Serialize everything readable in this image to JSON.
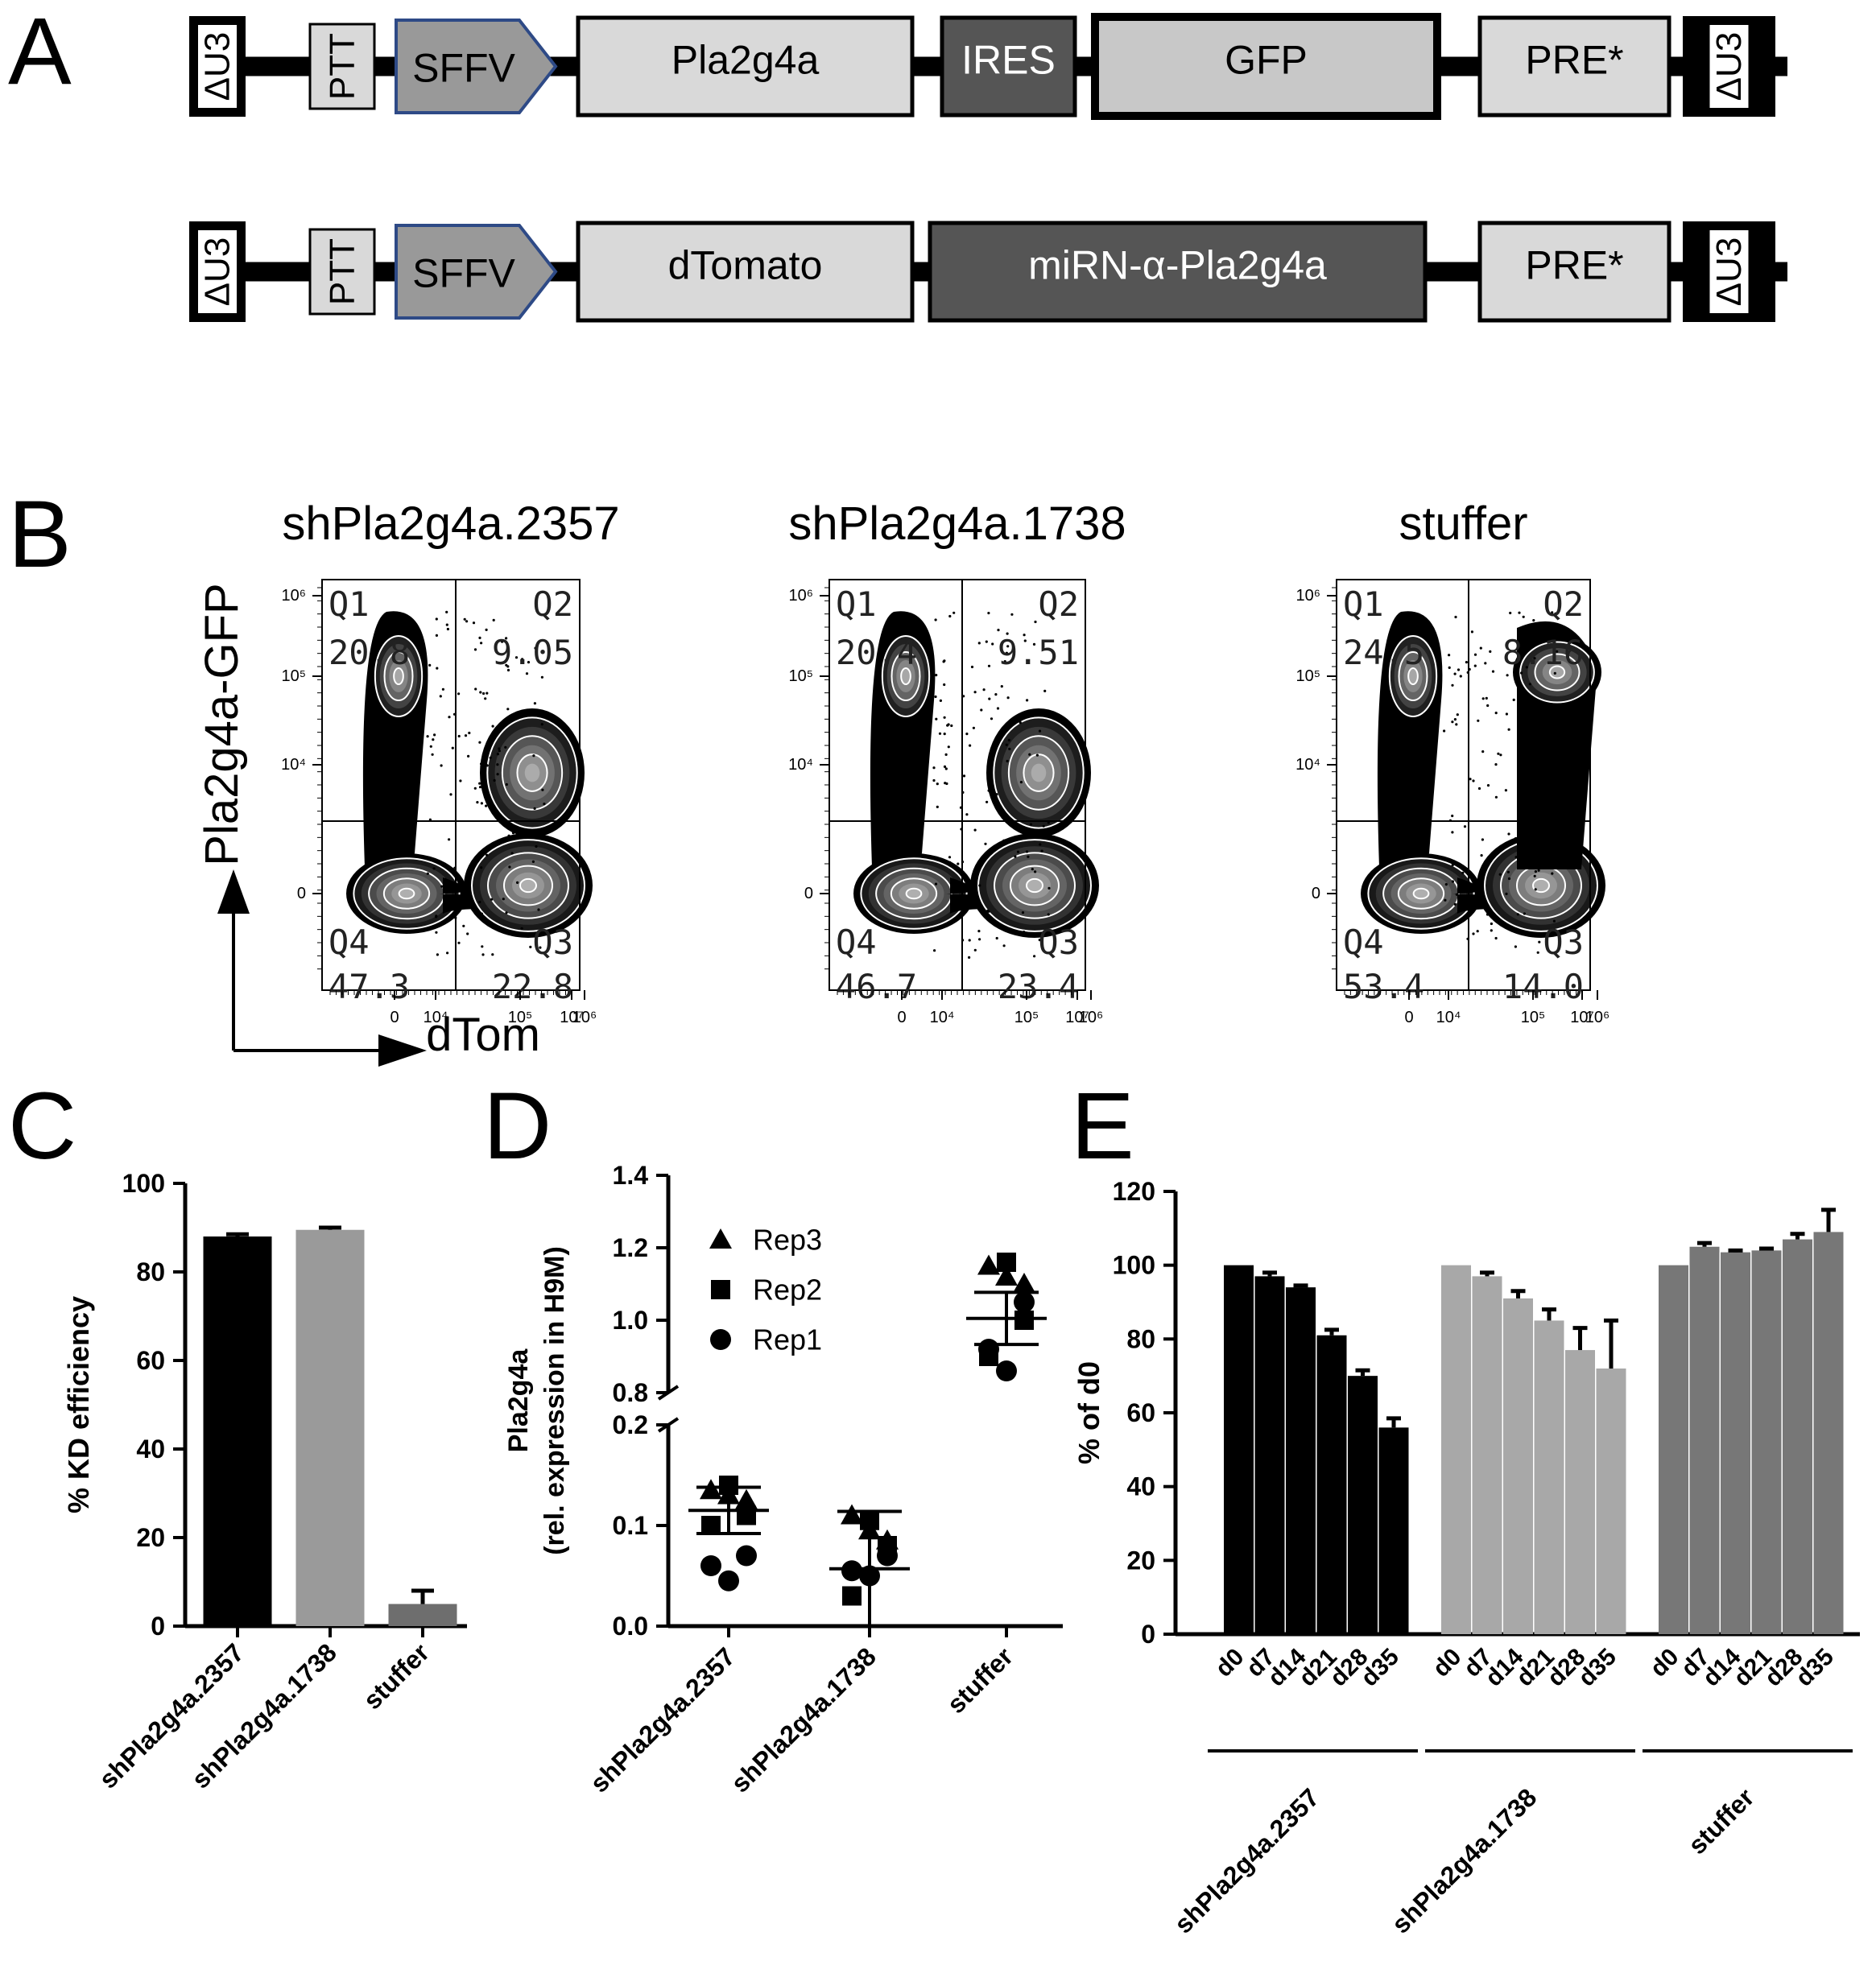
{
  "panels": {
    "A": {
      "letter": "A",
      "constructs": [
        {
          "elements": [
            {
              "kind": "ltr",
              "label": "ΔU3"
            },
            {
              "kind": "small",
              "label": "PTT"
            },
            {
              "kind": "promoter",
              "label": "SFFV"
            },
            {
              "kind": "box",
              "label": "Pla2g4a"
            },
            {
              "kind": "dark",
              "label": "IRES"
            },
            {
              "kind": "thick",
              "label": "GFP"
            },
            {
              "kind": "box",
              "label": "PRE*"
            },
            {
              "kind": "ltr",
              "label": "ΔU3"
            }
          ]
        },
        {
          "elements": [
            {
              "kind": "ltr",
              "label": "ΔU3"
            },
            {
              "kind": "small",
              "label": "PTT"
            },
            {
              "kind": "promoter",
              "label": "SFFV"
            },
            {
              "kind": "box",
              "label": "dTomato"
            },
            {
              "kind": "dark",
              "label": "miRN-α-Pla2g4a"
            },
            {
              "kind": "box",
              "label": "PRE*"
            },
            {
              "kind": "ltr",
              "label": "ΔU3"
            }
          ]
        }
      ]
    },
    "B": {
      "letter": "B",
      "y_axis_label": "Pla2g4a-GFP",
      "x_axis_label": "dTom",
      "y_ticks": [
        "10⁶",
        "10⁵",
        "10⁴",
        "0"
      ],
      "x_ticks": [
        "0",
        "10⁴",
        "10⁵",
        "10⁶",
        "10⁷"
      ],
      "plots": [
        {
          "title": "shPla2g4a.2357",
          "q1_label": "Q1",
          "q1": "20.8",
          "q2_label": "Q2",
          "q2": "9.05",
          "q3_label": "Q3",
          "q3": "22.8",
          "q4_label": "Q4",
          "q4": "47.3"
        },
        {
          "title": "shPla2g4a.1738",
          "q1_label": "Q1",
          "q1": "20.4",
          "q2_label": "Q2",
          "q2": "9.51",
          "q3_label": "Q3",
          "q3": "23.4",
          "q4_label": "Q4",
          "q4": "46.7"
        },
        {
          "title": "stuffer",
          "q1_label": "Q1",
          "q1": "24.5",
          "q2_label": "Q2",
          "q2": "8.16",
          "q3_label": "Q3",
          "q3": "14.0",
          "q4_label": "Q4",
          "q4": "53.4"
        }
      ]
    },
    "C": {
      "letter": "C"
    },
    "D": {
      "letter": "D"
    },
    "E": {
      "letter": "E"
    }
  },
  "chart_data": [
    {
      "panel": "C",
      "type": "bar",
      "ylabel": "% KD efficiency",
      "categories": [
        "shPla2g4a.2357",
        "shPla2g4a.1738",
        "stuffer"
      ],
      "values": [
        88,
        89.5,
        5
      ],
      "errors": [
        0.5,
        0.5,
        3
      ],
      "colors": [
        "#000000",
        "#9a9a9a",
        "#6e6e6e"
      ],
      "ylim": [
        0,
        100
      ],
      "yticks": [
        0,
        20,
        40,
        60,
        80,
        100
      ]
    },
    {
      "panel": "D",
      "type": "scatter",
      "ylabel": "Pla2g4a",
      "ylabel2": "(rel. expression in H9M)",
      "categories": [
        "shPla2g4a.2357",
        "shPla2g4a.1738",
        "stuffer"
      ],
      "axis_break": [
        0.2,
        0.8
      ],
      "ylim": [
        0,
        1.4
      ],
      "yticks_lower": [
        "0.0",
        "0.1",
        "0.2"
      ],
      "yticks_upper": [
        "0.8",
        "1.0",
        "1.2",
        "1.4"
      ],
      "means": [
        0.115,
        0.057,
        1.005
      ],
      "sd": [
        0.023,
        0.057,
        0.072
      ],
      "legend": [
        {
          "marker": "triangle",
          "name": "Rep3"
        },
        {
          "marker": "square",
          "name": "Rep2"
        },
        {
          "marker": "circle",
          "name": "Rep1"
        }
      ],
      "series": [
        {
          "name": "Rep3",
          "marker": "triangle",
          "values": [
            [
              0.135,
              0.13,
              0.125
            ],
            [
              0.11,
              0.095,
              0.085
            ],
            [
              1.15,
              1.12,
              1.1
            ]
          ]
        },
        {
          "name": "Rep2",
          "marker": "square",
          "values": [
            [
              0.14,
              0.11,
              0.1
            ],
            [
              0.105,
              0.08,
              0.03
            ],
            [
              1.16,
              1.0,
              0.9
            ]
          ]
        },
        {
          "name": "Rep1",
          "marker": "circle",
          "values": [
            [
              0.07,
              0.06,
              0.045
            ],
            [
              0.07,
              0.055,
              0.05
            ],
            [
              1.05,
              0.92,
              0.86
            ]
          ]
        }
      ]
    },
    {
      "panel": "E",
      "type": "bar",
      "ylabel": "% of d0",
      "ylim": [
        0,
        120
      ],
      "yticks": [
        0,
        20,
        40,
        60,
        80,
        100,
        120
      ],
      "timepoints": [
        "d0",
        "d7",
        "d14",
        "d21",
        "d28",
        "d35"
      ],
      "groups": [
        {
          "name": "shPla2g4a.2357",
          "color": "#000000",
          "values": [
            100,
            97,
            94,
            81,
            70,
            56
          ],
          "errors": [
            0,
            1,
            0.5,
            1.5,
            1.5,
            2.5
          ]
        },
        {
          "name": "shPla2g4a.1738",
          "color": "#a8a8a8",
          "values": [
            100,
            97,
            91,
            85,
            77,
            72
          ],
          "errors": [
            0,
            1,
            2,
            3,
            6,
            13
          ]
        },
        {
          "name": "stuffer",
          "color": "#777777",
          "values": [
            100,
            105,
            103.5,
            104,
            107,
            109
          ],
          "errors": [
            0,
            1,
            0.5,
            0.5,
            1.5,
            6
          ]
        }
      ]
    }
  ]
}
